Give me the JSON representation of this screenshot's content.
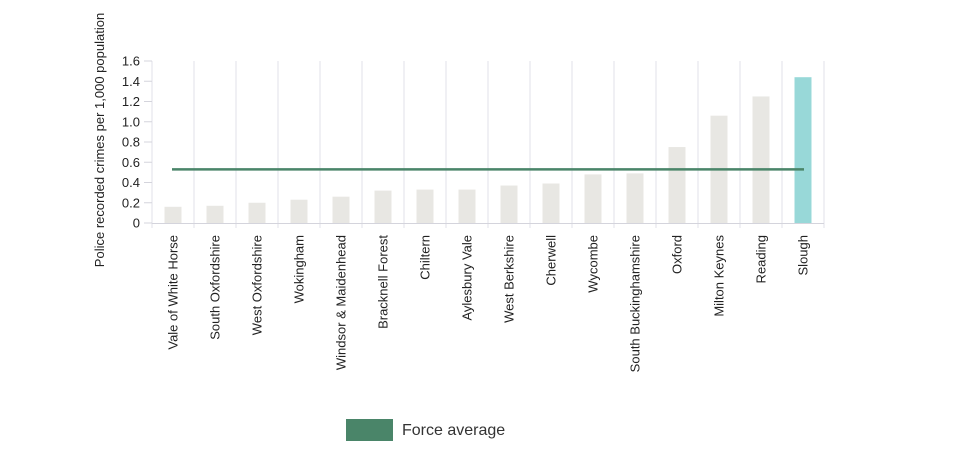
{
  "chart_data": {
    "type": "bar",
    "title": "",
    "xlabel": "",
    "ylabel": "Police recorded crimes per 1,000 population",
    "ylim": [
      0,
      1.6
    ],
    "yticks": [
      0,
      0.2,
      0.4,
      0.6,
      0.8,
      1.0,
      1.2,
      1.4,
      1.6
    ],
    "ytick_labels": [
      "0",
      "0.2",
      "0.4",
      "0.6",
      "0.8",
      "1.0",
      "1.2",
      "1.4",
      "1.6"
    ],
    "categories": [
      "Vale of White Horse",
      "South Oxfordshire",
      "West Oxfordshire",
      "Wokingham",
      "Windsor & Maidenhead",
      "Bracknell Forest",
      "Chiltern",
      "Aylesbury Vale",
      "West Berkshire",
      "Cherwell",
      "Wycombe",
      "South Buckinghamshire",
      "Oxford",
      "Milton Keynes",
      "Reading",
      "Slough"
    ],
    "values": [
      0.16,
      0.17,
      0.2,
      0.23,
      0.26,
      0.32,
      0.33,
      0.33,
      0.37,
      0.39,
      0.48,
      0.49,
      0.75,
      1.06,
      1.25,
      1.44
    ],
    "highlight_category": "Slough",
    "force_average": 0.53,
    "grid": "vertical",
    "legend": {
      "position": "bottom-center",
      "entries": [
        "Force average"
      ]
    },
    "colors": {
      "bar": "#e8e7e3",
      "highlight": "#98d8d8",
      "average_line": "#4a8569",
      "grid": "#e2e2ea"
    }
  }
}
